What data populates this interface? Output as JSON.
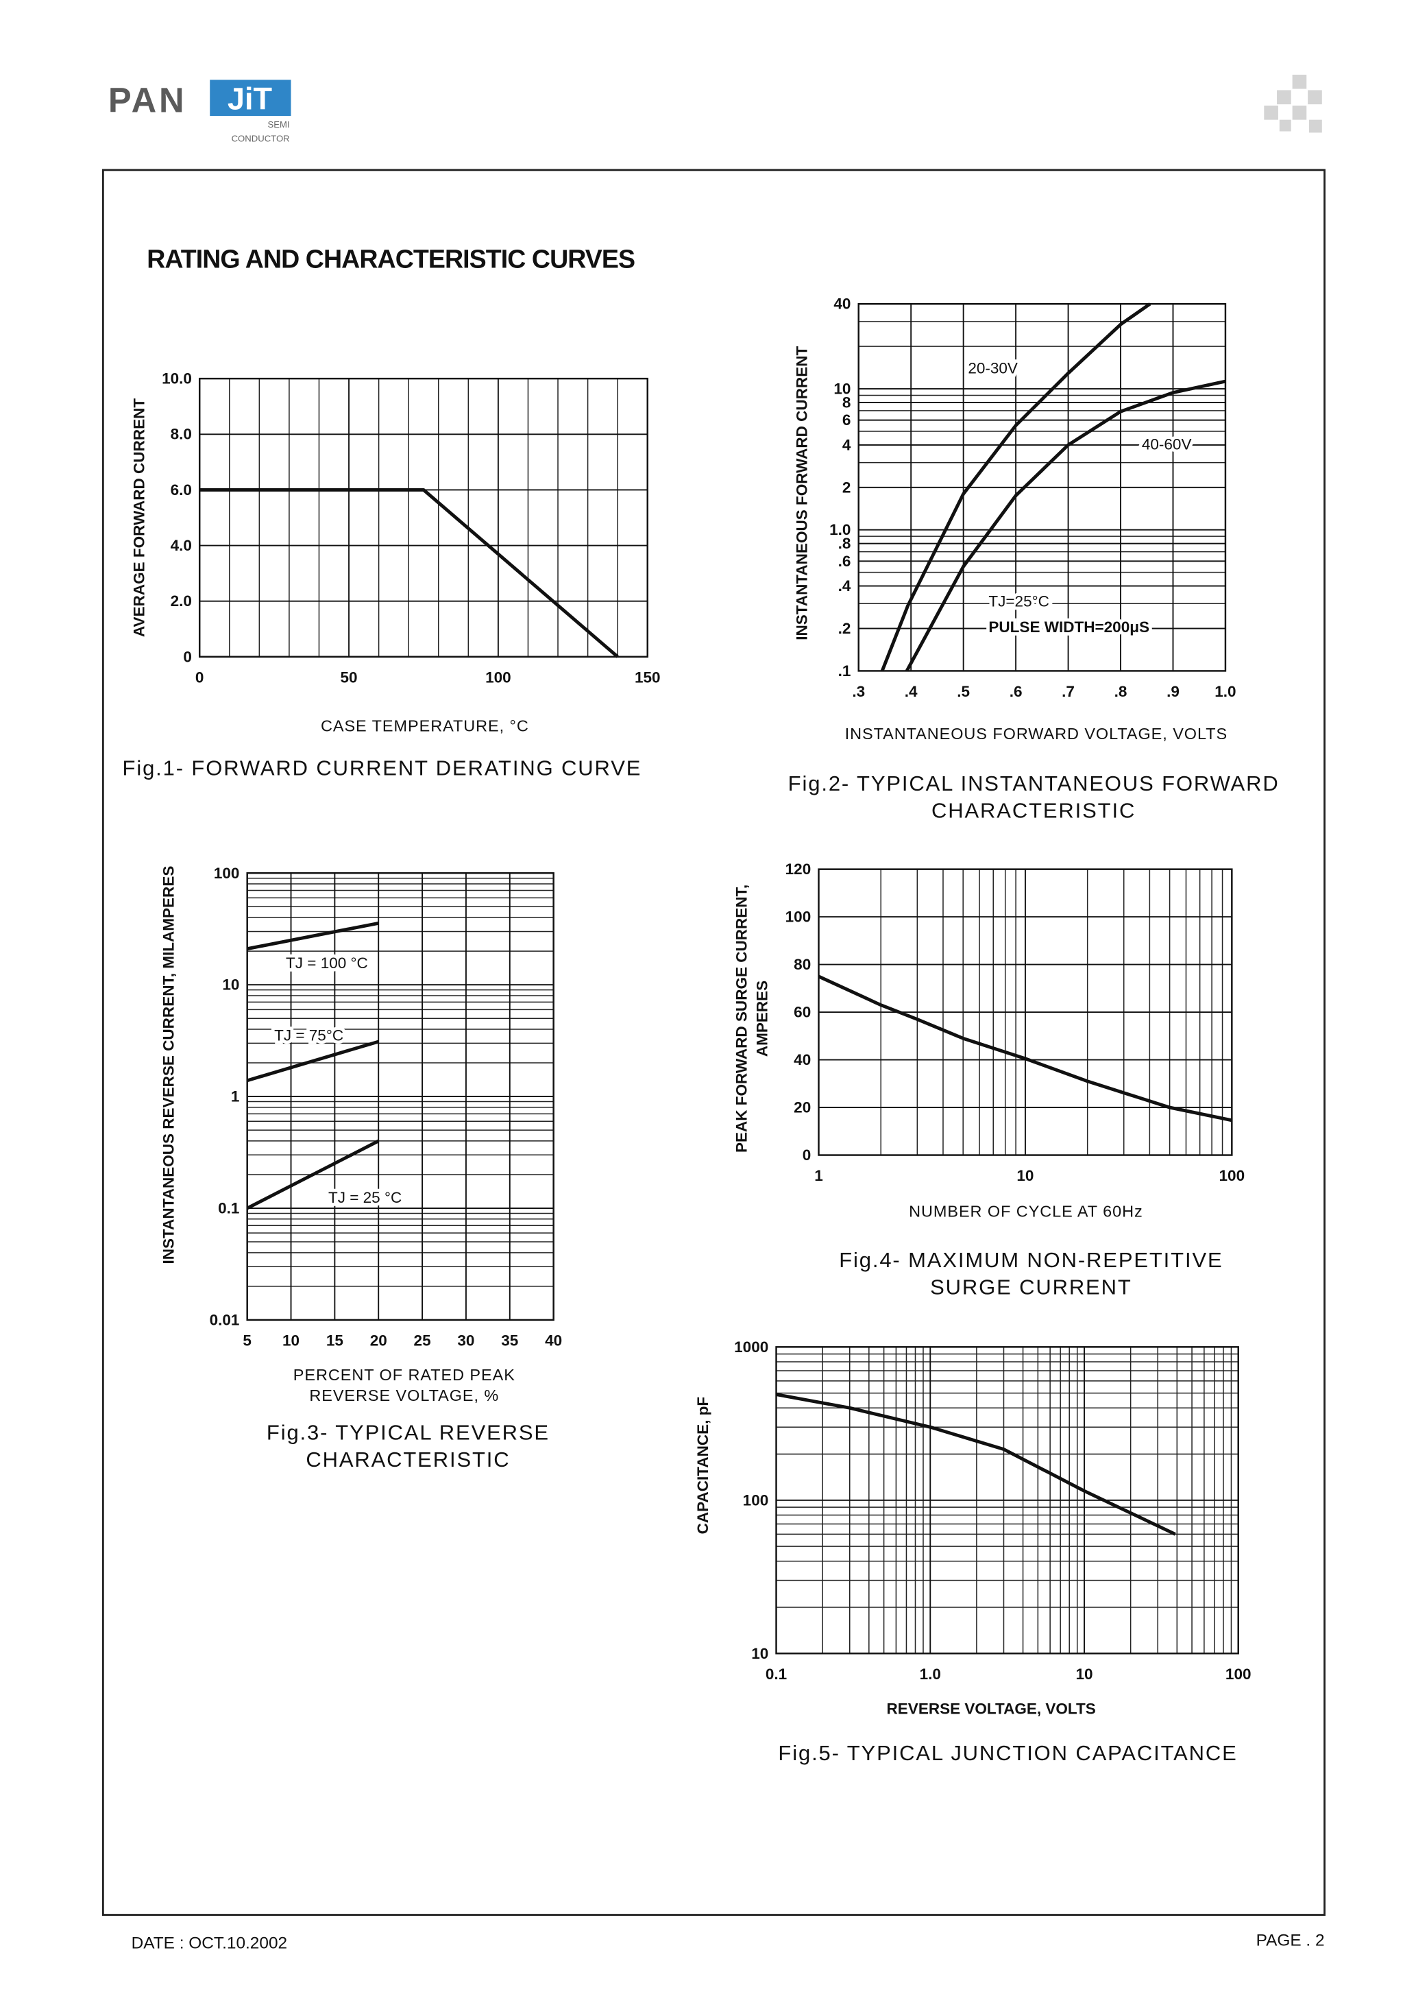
{
  "header": {
    "logo_left": "PAN",
    "logo_right": "JiT",
    "logo_sub": [
      "SEMI",
      "CONDUCTOR"
    ]
  },
  "title": "RATING AND CHARACTERISTIC CURVES",
  "chart_data": [
    {
      "type": "line",
      "caption": [
        "Fig.1- FORWARD CURRENT DERATING CURVE"
      ],
      "xlabel": "CASE TEMPERATURE, °C",
      "ylabel": "AVERAGE FORWARD CURRENT",
      "xscale": "linear",
      "yscale": "linear",
      "xlim": [
        0,
        150
      ],
      "ylim": [
        0,
        10
      ],
      "xticks": [
        0,
        50,
        100,
        150
      ],
      "yticks": [
        0,
        {
          "value": 2,
          "label": "2.0"
        },
        {
          "value": 4,
          "label": "4.0"
        },
        {
          "value": 6,
          "label": "6.0"
        },
        {
          "value": 8,
          "label": "8.0"
        },
        {
          "value": 10,
          "label": "10.0"
        }
      ],
      "grid": true,
      "xminor": 5,
      "series": [
        {
          "color": "#111111",
          "x": [
            0,
            75,
            140
          ],
          "values": [
            6,
            6,
            0
          ]
        }
      ]
    },
    {
      "type": "line",
      "caption": [
        "Fig.2- TYPICAL INSTANTANEOUS FORWARD",
        "CHARACTERISTIC"
      ],
      "xlabel": "INSTANTANEOUS FORWARD VOLTAGE, VOLTS",
      "ylabel": "INSTANTANEOUS FORWARD CURRENT",
      "xscale": "linear",
      "yscale": "log",
      "xlim": [
        0.3,
        1.0
      ],
      "ylim": [
        0.1,
        40
      ],
      "xticks": [
        {
          "value": 0.3,
          "label": ".3"
        },
        {
          "value": 0.4,
          "label": ".4"
        },
        {
          "value": 0.5,
          "label": ".5"
        },
        {
          "value": 0.6,
          "label": ".6"
        },
        {
          "value": 0.7,
          "label": ".7"
        },
        {
          "value": 0.8,
          "label": ".8"
        },
        {
          "value": 0.9,
          "label": ".9"
        },
        {
          "value": 1.0,
          "label": "1.0"
        }
      ],
      "yticks": [
        {
          "value": 0.1,
          "label": ".1"
        },
        {
          "value": 0.2,
          "label": ".2"
        },
        {
          "value": 0.4,
          "label": ".4"
        },
        {
          "value": 0.6,
          "label": ".6"
        },
        {
          "value": 0.8,
          "label": ".8"
        },
        {
          "value": 1,
          "label": "1.0"
        },
        2,
        4,
        6,
        8,
        10,
        40
      ],
      "grid": true,
      "yminor": true,
      "annotations": [
        "TJ=25°C",
        "PULSE WIDTH=200μS"
      ],
      "series": [
        {
          "name": "20-30V",
          "color": "#111111",
          "x": [
            0.345,
            0.394,
            0.5,
            0.6,
            0.7,
            0.8,
            0.856
          ],
          "values": [
            0.1,
            0.29,
            1.8,
            5.5,
            12.9,
            28.6,
            40
          ]
        },
        {
          "name": "40-60V",
          "color": "#111111",
          "x": [
            0.392,
            0.5,
            0.6,
            0.7,
            0.8,
            0.9,
            1.0
          ],
          "values": [
            0.1,
            0.55,
            1.75,
            4.0,
            6.9,
            9.4,
            11.3
          ]
        }
      ]
    },
    {
      "type": "line",
      "caption": [
        "Fig.3- TYPICAL REVERSE",
        "CHARACTERISTIC"
      ],
      "xlabel": [
        "PERCENT OF RATED PEAK",
        "REVERSE VOLTAGE, %"
      ],
      "ylabel": "INSTANTANEOUS REVERSE CURRENT, MILAMPERES",
      "xscale": "linear",
      "yscale": "log",
      "xlim": [
        5,
        40
      ],
      "ylim": [
        0.01,
        100
      ],
      "xticks": [
        5,
        10,
        15,
        20,
        25,
        30,
        35,
        40
      ],
      "yticks": [
        0.01,
        0.1,
        1,
        10,
        100
      ],
      "grid": true,
      "yminor": true,
      "series": [
        {
          "name": "TJ = 100 °C",
          "color": "#111111",
          "x": [
            5,
            20
          ],
          "values": [
            21,
            35.6
          ]
        },
        {
          "name": "TJ = 75°C",
          "color": "#111111",
          "x": [
            5,
            20
          ],
          "values": [
            1.39,
            3.1
          ]
        },
        {
          "name": "TJ = 25 °C",
          "color": "#111111",
          "x": [
            5,
            20
          ],
          "values": [
            0.1,
            0.4
          ]
        }
      ]
    },
    {
      "type": "line",
      "caption": [
        "Fig.4- MAXIMUM NON-REPETITIVE",
        "SURGE CURRENT"
      ],
      "xlabel": "NUMBER OF CYCLE AT 60Hz",
      "ylabel": [
        "PEAK FORWARD SURGE CURRENT,",
        "AMPERES"
      ],
      "xscale": "log",
      "yscale": "linear",
      "xlim": [
        1,
        100
      ],
      "ylim": [
        0,
        120
      ],
      "xticks": [
        1,
        10,
        100
      ],
      "yticks": [
        0,
        20,
        40,
        60,
        80,
        100,
        120
      ],
      "grid": true,
      "xminor": true,
      "series": [
        {
          "color": "#111111",
          "x": [
            1,
            2,
            3,
            5,
            10,
            20,
            50,
            100
          ],
          "values": [
            75,
            63,
            57,
            49,
            40.5,
            31,
            20,
            14.6
          ]
        }
      ]
    },
    {
      "type": "line",
      "caption": [
        "Fig.5- TYPICAL JUNCTION CAPACITANCE"
      ],
      "xlabel": "REVERSE VOLTAGE, VOLTS",
      "ylabel": "CAPACITANCE, pF",
      "xscale": "log",
      "yscale": "log",
      "xlim": [
        0.1,
        100
      ],
      "ylim": [
        10,
        1000
      ],
      "xticks": [
        0.1,
        {
          "value": 1,
          "label": "1.0"
        },
        10,
        100
      ],
      "yticks": [
        10,
        100,
        1000
      ],
      "grid": true,
      "xminor": true,
      "yminor": true,
      "series": [
        {
          "color": "#111111",
          "x": [
            0.1,
            0.3,
            1,
            3,
            10,
            39
          ],
          "values": [
            490,
            400,
            300,
            215,
            115,
            60
          ]
        }
      ]
    }
  ],
  "footer": {
    "date": "DATE : OCT.10.2002",
    "page": "PAGE . 2"
  }
}
